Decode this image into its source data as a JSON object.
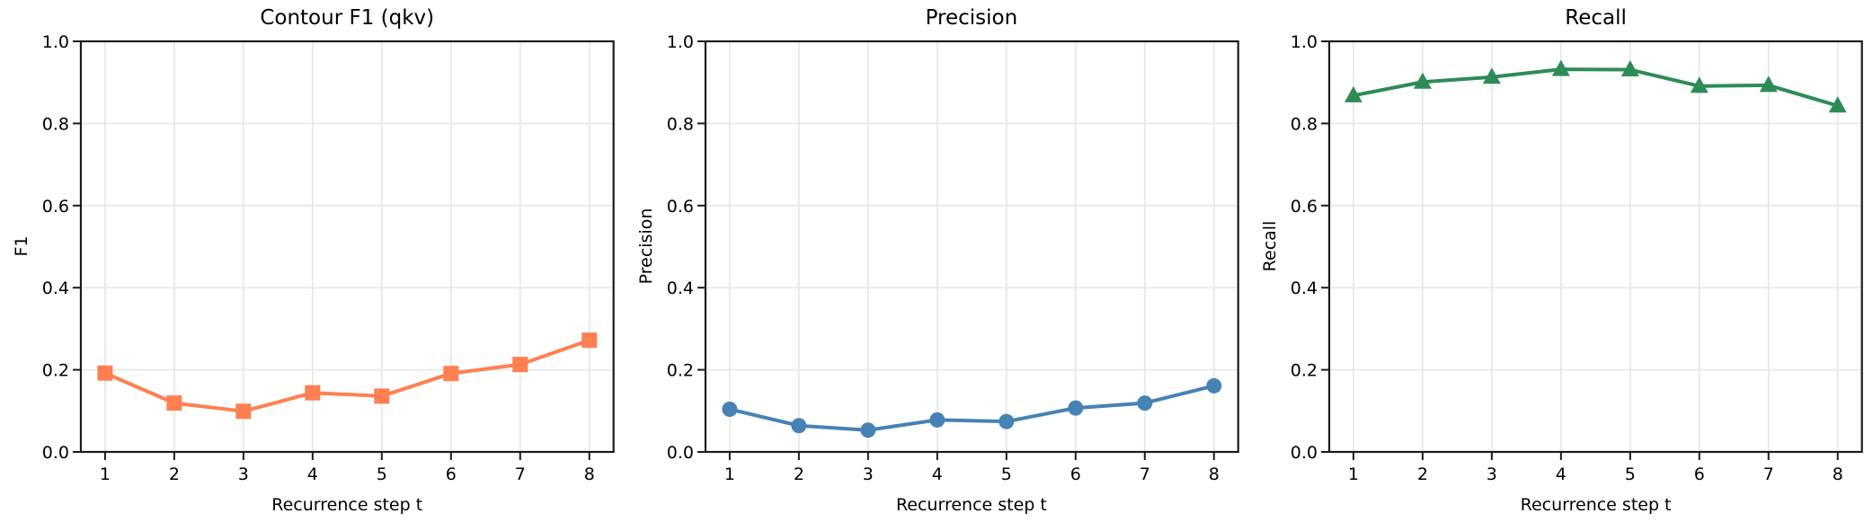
{
  "style": {
    "background": "#ffffff",
    "spine_color": "#1b1b1b",
    "grid_color": "#e8e8e8",
    "text_color": "#000000"
  },
  "chart_data": [
    {
      "type": "line",
      "title": "Contour F1 (qkv)",
      "xlabel": "Recurrence step t",
      "ylabel": "F1",
      "x": [
        1,
        2,
        3,
        4,
        5,
        6,
        7,
        8
      ],
      "xticks": [
        "1",
        "2",
        "3",
        "4",
        "5",
        "6",
        "7",
        "8"
      ],
      "yticks": [
        "0.0",
        "0.2",
        "0.4",
        "0.6",
        "0.8",
        "1.0"
      ],
      "xlim": [
        0.65,
        8.35
      ],
      "ylim": [
        0,
        1
      ],
      "grid": true,
      "legend": "none",
      "series": [
        {
          "name": "Contour F1 (qkv)",
          "color": "#FF7F50",
          "marker": "square",
          "values": [
            0.192,
            0.119,
            0.099,
            0.144,
            0.136,
            0.191,
            0.213,
            0.272
          ]
        }
      ]
    },
    {
      "type": "line",
      "title": "Precision",
      "xlabel": "Recurrence step t",
      "ylabel": "Precision",
      "x": [
        1,
        2,
        3,
        4,
        5,
        6,
        7,
        8
      ],
      "xticks": [
        "1",
        "2",
        "3",
        "4",
        "5",
        "6",
        "7",
        "8"
      ],
      "yticks": [
        "0.0",
        "0.2",
        "0.4",
        "0.6",
        "0.8",
        "1.0"
      ],
      "xlim": [
        0.65,
        8.35
      ],
      "ylim": [
        0,
        1
      ],
      "grid": true,
      "legend": "none",
      "series": [
        {
          "name": "Precision",
          "color": "#4682B4",
          "marker": "circle",
          "values": [
            0.104,
            0.064,
            0.053,
            0.078,
            0.074,
            0.107,
            0.119,
            0.161
          ]
        }
      ]
    },
    {
      "type": "line",
      "title": "Recall",
      "xlabel": "Recurrence step t",
      "ylabel": "Recall",
      "x": [
        1,
        2,
        3,
        4,
        5,
        6,
        7,
        8
      ],
      "xticks": [
        "1",
        "2",
        "3",
        "4",
        "5",
        "6",
        "7",
        "8"
      ],
      "yticks": [
        "0.0",
        "0.2",
        "0.4",
        "0.6",
        "0.8",
        "1.0"
      ],
      "xlim": [
        0.65,
        8.35
      ],
      "ylim": [
        0,
        1
      ],
      "grid": true,
      "legend": "none",
      "series": [
        {
          "name": "Recall",
          "color": "#2E8B57",
          "marker": "triangle-up",
          "values": [
            0.868,
            0.901,
            0.913,
            0.932,
            0.931,
            0.891,
            0.893,
            0.843
          ]
        }
      ]
    }
  ]
}
